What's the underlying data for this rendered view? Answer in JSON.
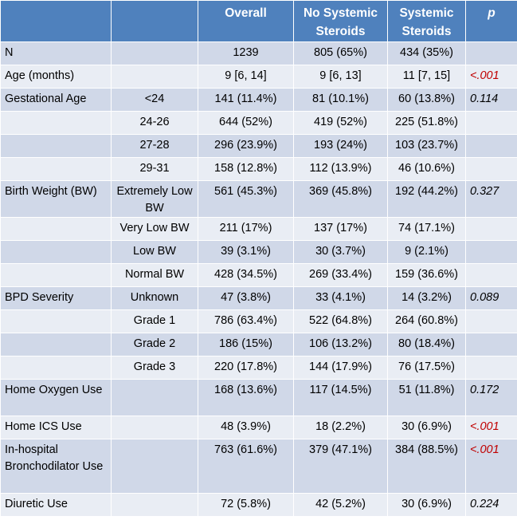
{
  "header": {
    "col1": "",
    "col2": "",
    "overall": "Overall",
    "no_steroids": "No Systemic Steroids",
    "steroids": "Systemic Steroids",
    "p": "p"
  },
  "rows": [
    {
      "label": "N",
      "sub": "",
      "overall": "1239",
      "no": "805 (65%)",
      "yes": "434 (35%)",
      "p": "",
      "sig": false
    },
    {
      "label": "Age (months)",
      "sub": "",
      "overall": "9 [6, 14]",
      "no": "9 [6, 13]",
      "yes": "11 [7, 15]",
      "p": "<.001",
      "sig": true
    },
    {
      "label": "Gestational Age",
      "sub": "<24",
      "overall": "141 (11.4%)",
      "no": "81 (10.1%)",
      "yes": "60 (13.8%)",
      "p": "0.114",
      "sig": false
    },
    {
      "label": "",
      "sub": "24-26",
      "overall": "644 (52%)",
      "no": "419 (52%)",
      "yes": "225 (51.8%)",
      "p": "",
      "sig": false
    },
    {
      "label": "",
      "sub": "27-28",
      "overall": "296 (23.9%)",
      "no": "193 (24%)",
      "yes": "103 (23.7%)",
      "p": "",
      "sig": false
    },
    {
      "label": "",
      "sub": "29-31",
      "overall": "158 (12.8%)",
      "no": "112 (13.9%)",
      "yes": "46 (10.6%)",
      "p": "",
      "sig": false
    },
    {
      "label": "Birth Weight (BW)",
      "sub": "Extremely Low BW",
      "overall": "561 (45.3%)",
      "no": "369 (45.8%)",
      "yes": "192 (44.2%)",
      "p": "0.327",
      "sig": false
    },
    {
      "label": "",
      "sub": "Very Low BW",
      "overall": "211 (17%)",
      "no": "137 (17%)",
      "yes": "74 (17.1%)",
      "p": "",
      "sig": false
    },
    {
      "label": "",
      "sub": "Low BW",
      "overall": "39 (3.1%)",
      "no": "30 (3.7%)",
      "yes": "9 (2.1%)",
      "p": "",
      "sig": false
    },
    {
      "label": "",
      "sub": "Normal BW",
      "overall": "428 (34.5%)",
      "no": "269 (33.4%)",
      "yes": "159 (36.6%)",
      "p": "",
      "sig": false
    },
    {
      "label": "BPD Severity",
      "sub": "Unknown",
      "overall": "47 (3.8%)",
      "no": "33 (4.1%)",
      "yes": "14 (3.2%)",
      "p": "0.089",
      "sig": false
    },
    {
      "label": "",
      "sub": "Grade 1",
      "overall": "786 (63.4%)",
      "no": "522 (64.8%)",
      "yes": "264 (60.8%)",
      "p": "",
      "sig": false
    },
    {
      "label": "",
      "sub": "Grade 2",
      "overall": "186 (15%)",
      "no": "106 (13.2%)",
      "yes": "80 (18.4%)",
      "p": "",
      "sig": false
    },
    {
      "label": "",
      "sub": "Grade 3",
      "overall": "220 (17.8%)",
      "no": "144 (17.9%)",
      "yes": "76 (17.5%)",
      "p": "",
      "sig": false
    },
    {
      "label": "Home Oxygen Use",
      "sub": "",
      "overall": "168 (13.6%)",
      "no": "117 (14.5%)",
      "yes": "51 (11.8%)",
      "p": "0.172",
      "sig": false
    },
    {
      "label": "Home ICS Use",
      "sub": "",
      "overall": "48 (3.9%)",
      "no": "18 (2.2%)",
      "yes": "30 (6.9%)",
      "p": "<.001",
      "sig": true
    },
    {
      "label": "In-hospital Bronchodilator Use",
      "sub": "",
      "overall": "763 (61.6%)",
      "no": "379 (47.1%)",
      "yes": "384 (88.5%)",
      "p": "<.001",
      "sig": true
    },
    {
      "label": "Diuretic Use",
      "sub": "",
      "overall": "72 (5.8%)",
      "no": "42 (5.2%)",
      "yes": "30 (6.9%)",
      "p": "0.224",
      "sig": false
    }
  ]
}
